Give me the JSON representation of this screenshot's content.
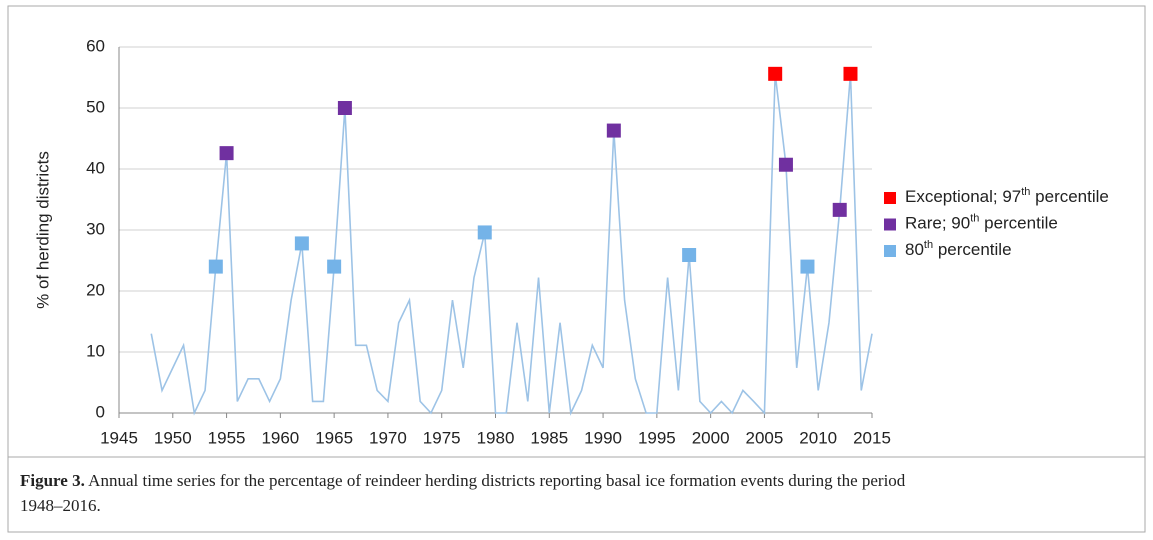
{
  "chart_data": {
    "type": "line",
    "y_label": "% of herding districts",
    "x": [
      1948,
      1949,
      1950,
      1951,
      1952,
      1953,
      1954,
      1955,
      1956,
      1957,
      1958,
      1959,
      1960,
      1961,
      1962,
      1963,
      1964,
      1965,
      1966,
      1967,
      1968,
      1969,
      1970,
      1971,
      1972,
      1973,
      1974,
      1975,
      1976,
      1977,
      1978,
      1979,
      1980,
      1981,
      1982,
      1983,
      1984,
      1985,
      1986,
      1987,
      1988,
      1989,
      1990,
      1991,
      1992,
      1993,
      1994,
      1995,
      1996,
      1997,
      1998,
      1999,
      2000,
      2001,
      2002,
      2003,
      2004,
      2005,
      2006,
      2007,
      2008,
      2009,
      2010,
      2011,
      2012,
      2013,
      2014,
      2015
    ],
    "values": [
      13,
      3.7,
      7.4,
      11.1,
      0,
      3.7,
      24,
      42.6,
      1.9,
      5.6,
      5.6,
      1.9,
      5.6,
      18.5,
      27.8,
      1.9,
      1.9,
      24,
      50,
      11.1,
      11.1,
      3.7,
      1.9,
      14.8,
      18.5,
      1.9,
      0,
      3.7,
      18.5,
      7.4,
      22.2,
      29.6,
      0,
      0,
      14.8,
      1.9,
      22.2,
      0,
      14.8,
      0,
      3.7,
      11.1,
      7.4,
      46.3,
      18.5,
      5.6,
      0,
      0,
      22.2,
      3.7,
      25.9,
      1.9,
      0,
      1.9,
      0,
      3.7,
      1.9,
      0,
      55.6,
      40.7,
      7.4,
      24,
      3.7,
      14.8,
      33.3,
      55.6,
      3.7,
      13
    ],
    "line_color": "#9dc3e6",
    "series": [
      {
        "name": [
          "Exceptional; 97",
          "th",
          " percentile"
        ],
        "color": "#ff0000",
        "x": [
          2006,
          2013
        ],
        "values": [
          55.6,
          55.6
        ]
      },
      {
        "name": [
          "Rare; 90",
          "th",
          " percentile"
        ],
        "color": "#7030a0",
        "x": [
          1955,
          1966,
          1991,
          2007,
          2012
        ],
        "values": [
          42.6,
          50,
          46.3,
          40.7,
          33.3
        ]
      },
      {
        "name": [
          "80",
          "th",
          " percentile"
        ],
        "color": "#74b3e8",
        "x": [
          1954,
          1962,
          1965,
          1979,
          1998,
          2009
        ],
        "values": [
          24,
          27.8,
          24,
          29.6,
          25.9,
          24
        ]
      }
    ],
    "xlim": [
      1945,
      2015
    ],
    "xticks": [
      1945,
      1950,
      1955,
      1960,
      1965,
      1970,
      1975,
      1980,
      1985,
      1990,
      1995,
      2000,
      2005,
      2010,
      2015
    ],
    "ylim": [
      0,
      60
    ],
    "yticks": [
      0,
      10,
      20,
      30,
      40,
      50,
      60
    ],
    "grid": true,
    "caption_label": "Figure 3.",
    "caption": [
      "Annual time series for the percentage of reindeer herding districts reporting basal ice formation events during the period",
      "1948–2016."
    ]
  }
}
